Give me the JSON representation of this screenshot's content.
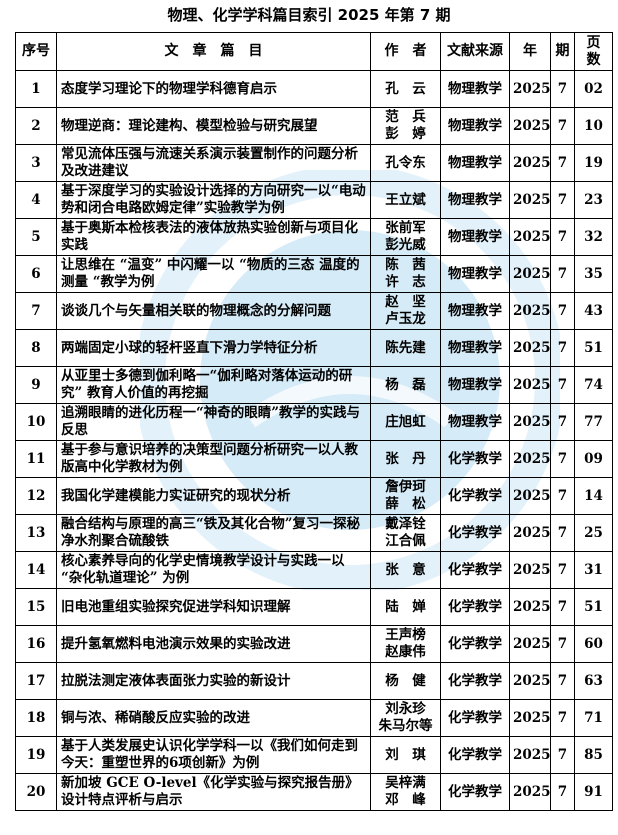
{
  "title": "物理、化学学科篇目索引 2025 年第 7 期",
  "headers": {
    "no": "序号",
    "title": "文　章　篇　目",
    "author": "作　者",
    "source": "文献来源",
    "year": "年",
    "issue": "期",
    "pages": "页数"
  },
  "watermark_color": "#3fa3dc",
  "rows": [
    {
      "no": "1",
      "title": "态度学习理论下的物理学科德育启示",
      "authors": [
        "孔　云"
      ],
      "source": "物理教学",
      "year": "2025",
      "issue": "7",
      "page": "02"
    },
    {
      "no": "2",
      "title": "物理逆商：理论建构、模型检验与研究展望",
      "authors": [
        "范　兵",
        "彭　婷"
      ],
      "source": "物理教学",
      "year": "2025",
      "issue": "7",
      "page": "10"
    },
    {
      "no": "3",
      "title": "常见流体压强与流速关系演示装置制作的问题分析及改进建议",
      "authors": [
        "孔令东"
      ],
      "source": "物理教学",
      "year": "2025",
      "issue": "7",
      "page": "19"
    },
    {
      "no": "4",
      "title": "基于深度学习的实验设计选择的方向研究一以“电动势和闭合电路欧姆定律”实验教学为例",
      "authors": [
        "王立斌"
      ],
      "source": "物理教学",
      "year": "2025",
      "issue": "7",
      "page": "23"
    },
    {
      "no": "5",
      "title": "基于奥斯本检核表法的液体放热实验创新与项目化实践",
      "authors": [
        "张前军",
        "彭光威"
      ],
      "source": "物理教学",
      "year": "2025",
      "issue": "7",
      "page": "32"
    },
    {
      "no": "6",
      "title": "让思维在 “温变” 中闪耀一以 “物质的三态 温度的测量 “教学为例",
      "authors": [
        "陈　茜",
        "许　志"
      ],
      "source": "物理教学",
      "year": "2025",
      "issue": "7",
      "page": "35"
    },
    {
      "no": "7",
      "title": "谈谈几个与矢量相关联的物理概念的分解问题",
      "authors": [
        "赵　坚",
        "卢玉龙"
      ],
      "source": "物理教学",
      "year": "2025",
      "issue": "7",
      "page": "43"
    },
    {
      "no": "8",
      "title": "两端固定小球的轻杆竖直下滑力学特征分析",
      "authors": [
        "陈先建"
      ],
      "source": "物理教学",
      "year": "2025",
      "issue": "7",
      "page": "51"
    },
    {
      "no": "9",
      "title": "从亚里士多德到伽利略一“伽利略对落体运动的研究” 教育人价值的再挖掘",
      "authors": [
        "杨　磊"
      ],
      "source": "物理教学",
      "year": "2025",
      "issue": "7",
      "page": "74"
    },
    {
      "no": "10",
      "title": "追溯眼睛的进化历程一“神奇的眼睛”教学的实践与反思",
      "authors": [
        "庄旭虹"
      ],
      "source": "物理教学",
      "year": "2025",
      "issue": "7",
      "page": "77"
    },
    {
      "no": "11",
      "title": "基于参与意识培养的决策型问题分析研究一以人教版高中化学教材为例",
      "authors": [
        "张　丹"
      ],
      "source": "化学教学",
      "year": "2025",
      "issue": "7",
      "page": "09"
    },
    {
      "no": "12",
      "title": "我国化学建模能力实证研究的现状分析",
      "authors": [
        "詹伊珂",
        "薛　松"
      ],
      "source": "化学教学",
      "year": "2025",
      "issue": "7",
      "page": "14"
    },
    {
      "no": "13",
      "title": "融合结构与原理的高三“铁及其化合物”复习一探秘净水剂聚合硫酸铁",
      "authors": [
        "戴泽铨",
        "江合佩"
      ],
      "source": "化学教学",
      "year": "2025",
      "issue": "7",
      "page": "25"
    },
    {
      "no": "14",
      "title": "核心素养导向的化学史情境教学设计与实践一以 “杂化轨道理论” 为例",
      "authors": [
        "张　意"
      ],
      "source": "化学教学",
      "year": "2025",
      "issue": "7",
      "page": "31"
    },
    {
      "no": "15",
      "title": "旧电池重组实验探究促进学科知识理解",
      "authors": [
        "陆　婵"
      ],
      "source": "化学教学",
      "year": "2025",
      "issue": "7",
      "page": "51"
    },
    {
      "no": "16",
      "title": "提升氢氧燃料电池演示效果的实验改进",
      "authors": [
        "王声榜",
        "赵康伟"
      ],
      "source": "化学教学",
      "year": "2025",
      "issue": "7",
      "page": "60"
    },
    {
      "no": "17",
      "title": "拉脱法测定液体表面张力实验的新设计",
      "authors": [
        "杨　健"
      ],
      "source": "化学教学",
      "year": "2025",
      "issue": "7",
      "page": "63"
    },
    {
      "no": "18",
      "title": "铜与浓、稀硝酸反应实验的改进",
      "authors": [
        "刘永珍",
        "朱马尔等"
      ],
      "source": "化学教学",
      "year": "2025",
      "issue": "7",
      "page": "71"
    },
    {
      "no": "19",
      "title": "基于人类发展史认识化学学科一以《我们如何走到今天：重塑世界的6项创新》为例",
      "authors": [
        "刘　琪"
      ],
      "source": "化学教学",
      "year": "2025",
      "issue": "7",
      "page": "85"
    },
    {
      "no": "20",
      "title": "新加坡 GCE O-level《化学实验与探究报告册》设计特点评析与启示",
      "authors": [
        "吴梓满",
        "邓　峰"
      ],
      "source": "化学教学",
      "year": "2025",
      "issue": "7",
      "page": "91"
    }
  ]
}
